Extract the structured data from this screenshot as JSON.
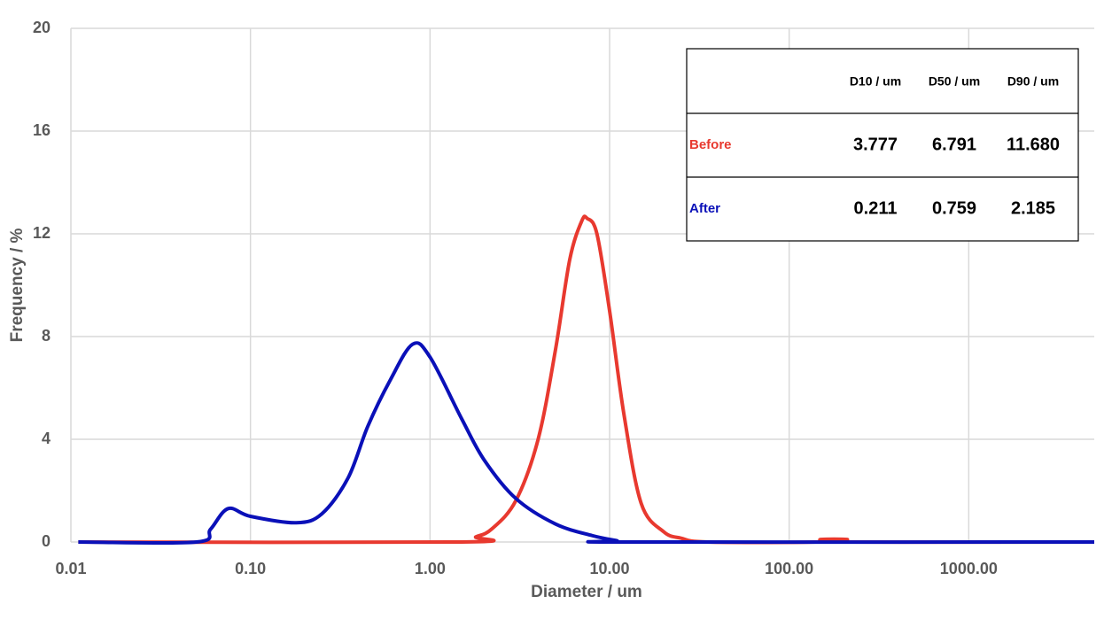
{
  "chart_data": {
    "type": "line",
    "xlabel": "Diameter / um",
    "ylabel": "Frequency / %",
    "xscale": "log",
    "grid": true,
    "xlim": [
      0.01,
      5000
    ],
    "ylim": [
      0,
      20
    ],
    "xticks": [
      0.01,
      {
        "value": 0.1,
        "label": "0.10"
      },
      {
        "value": 1,
        "label": "1.00"
      },
      {
        "value": 10,
        "label": "10.00"
      },
      {
        "value": 100,
        "label": "100.00"
      },
      {
        "value": 1000,
        "label": "1000.00"
      }
    ],
    "yticks": [
      0,
      4,
      8,
      12,
      16,
      20
    ],
    "series": [
      {
        "name": "Before",
        "color": "#e8392f",
        "x": [
          0.011,
          1.5,
          1.8,
          2.2,
          3,
          4,
          5,
          6,
          7,
          7.5,
          8.5,
          10,
          12,
          15,
          20,
          25,
          35,
          140,
          150,
          210,
          220,
          5000
        ],
        "values": [
          0,
          0,
          0.2,
          0.5,
          1.6,
          4,
          7.5,
          11,
          12.5,
          12.6,
          12,
          9,
          5,
          1.5,
          0.4,
          0.15,
          0,
          0,
          0.1,
          0.1,
          0,
          0
        ]
      },
      {
        "name": "After",
        "color": "#0a10b8",
        "x": [
          0.011,
          0.05,
          0.06,
          0.075,
          0.1,
          0.18,
          0.25,
          0.35,
          0.45,
          0.6,
          0.8,
          1.0,
          1.5,
          2,
          3,
          5,
          8,
          11,
          12,
          5000
        ],
        "values": [
          0,
          0,
          0.5,
          1.3,
          1.0,
          0.75,
          1.1,
          2.5,
          4.5,
          6.3,
          7.7,
          7.2,
          4.8,
          3.2,
          1.7,
          0.7,
          0.25,
          0.05,
          0,
          0
        ]
      }
    ],
    "table": {
      "columns": [
        "D10 / um",
        "D50 / um",
        "D90 / um"
      ],
      "rows": [
        [
          "3.777",
          "6.791",
          "11.680"
        ],
        [
          "0.211",
          "0.759",
          "2.185"
        ]
      ]
    }
  }
}
